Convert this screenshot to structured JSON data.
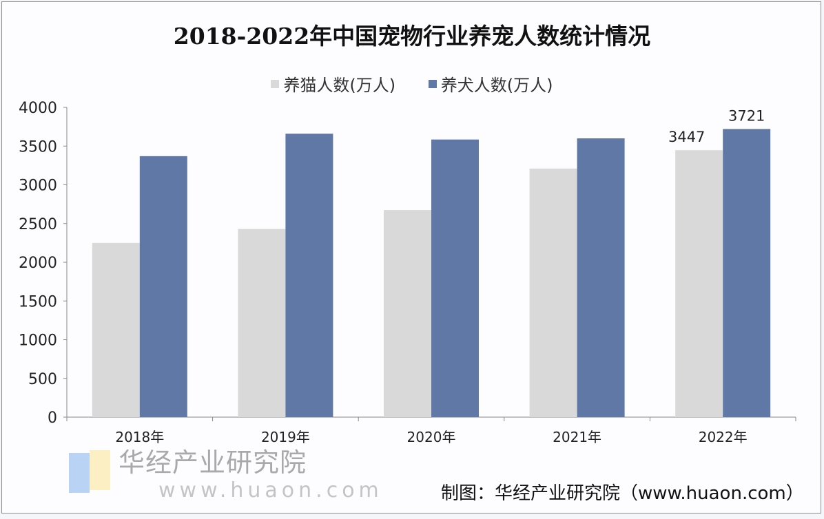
{
  "chart_data": {
    "type": "bar",
    "title": "2018-2022年中国宠物行业养宠人数统计情况",
    "categories": [
      "2018年",
      "2019年",
      "2020年",
      "2021年",
      "2022年"
    ],
    "series": [
      {
        "name": "养猫人数(万人)",
        "color": "#d9d9d9",
        "values": [
          2250,
          2430,
          2675,
          3210,
          3447
        ],
        "labels": [
          null,
          null,
          null,
          null,
          "3447"
        ]
      },
      {
        "name": "养犬人数(万人)",
        "color": "#6078a6",
        "values": [
          3370,
          3660,
          3585,
          3600,
          3721
        ],
        "labels": [
          null,
          null,
          null,
          null,
          "3721"
        ]
      }
    ],
    "ylim": [
      0,
      4000
    ],
    "yticks": [
      "0",
      "500",
      "1000",
      "1500",
      "2000",
      "2500",
      "3000",
      "3500",
      "4000"
    ],
    "grid": false,
    "legend": "top"
  },
  "source": "制图：华经产业研究院（www.huaon.com）",
  "watermark": {
    "name": "华经产业研究院",
    "url": "www.huaon.com"
  }
}
